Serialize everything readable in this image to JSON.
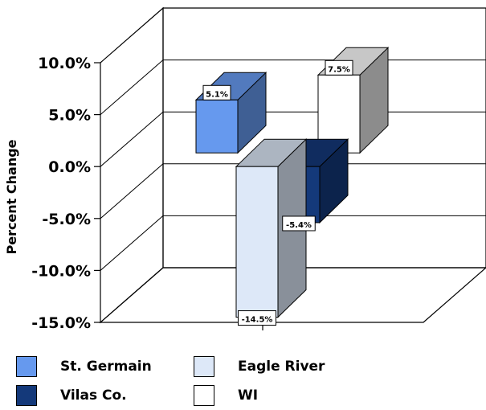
{
  "chart_data": {
    "type": "bar",
    "title": "",
    "ylabel": "Percent Change",
    "xlabel": "",
    "ylim": [
      -15.0,
      10.0
    ],
    "yticks": [
      "10.0%",
      "5.0%",
      "0.0%",
      "-5.0%",
      "-10.0%",
      "-15.0%"
    ],
    "grid": true,
    "legend_position": "bottom",
    "series": [
      {
        "name": "St. Germain",
        "value": 5.1,
        "label": "5.1%",
        "color": "#6699ee"
      },
      {
        "name": "Eagle River",
        "value": -14.5,
        "label": "-14.5%",
        "color": "#dde8f8"
      },
      {
        "name": "Vilas Co.",
        "value": -5.4,
        "label": "-5.4%",
        "color": "#14397a"
      },
      {
        "name": "WI",
        "value": 7.5,
        "label": "7.5%",
        "color": "#ffffff"
      }
    ]
  }
}
